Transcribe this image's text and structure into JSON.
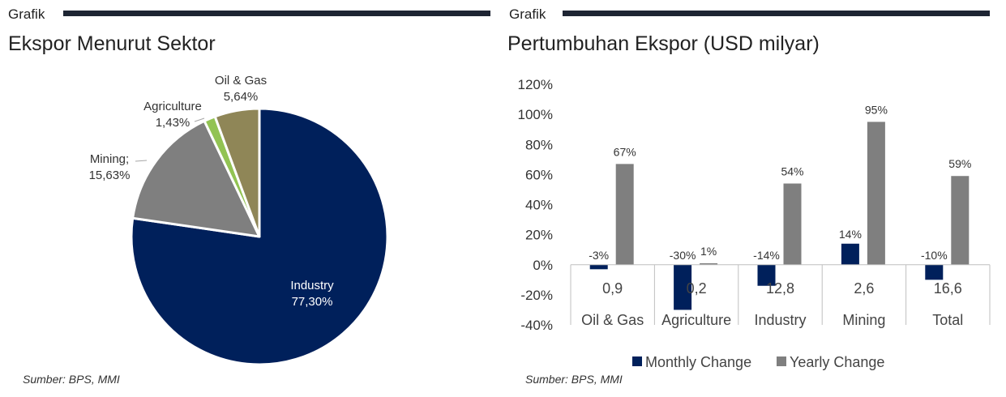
{
  "left_panel": {
    "kicker": "Grafik",
    "title": "Ekspor Menurut Sektor",
    "source": "Sumber: BPS, MMI"
  },
  "right_panel": {
    "kicker": "Grafik",
    "title": "Pertumbuhan Ekspor (USD milyar)",
    "source": "Sumber: BPS, MMI"
  },
  "colors": {
    "navy": "#00205b",
    "grey": "#7f7f7f",
    "light_green": "#92c353",
    "olive": "#8f8657",
    "axis_line": "#bfbfbf"
  },
  "chart_data": [
    {
      "type": "pie",
      "title": "Ekspor Menurut Sektor",
      "slices": [
        {
          "name": "Industry",
          "value": 77.3,
          "label": "77,30%",
          "color": "#00205b"
        },
        {
          "name": "Mining;",
          "value": 15.63,
          "label": "15,63%",
          "color": "#7f7f7f"
        },
        {
          "name": "Agriculture",
          "value": 1.43,
          "label": "1,43%",
          "color": "#92c353"
        },
        {
          "name": "Oil & Gas",
          "value": 5.64,
          "label": "5,64%",
          "color": "#8f8657"
        }
      ]
    },
    {
      "type": "bar",
      "title": "Pertumbuhan Ekspor (USD milyar)",
      "categories": [
        "Oil & Gas",
        "Agriculture",
        "Industry",
        "Mining",
        "Total"
      ],
      "category_values": [
        "0,9",
        "0,2",
        "12,8",
        "2,6",
        "16,6"
      ],
      "series": [
        {
          "name": "Monthly Change",
          "color": "#00205b",
          "values": [
            -3,
            -30,
            -14,
            14,
            -10
          ],
          "labels": [
            "-3%",
            "-30%",
            "-14%",
            "14%",
            "-10%"
          ]
        },
        {
          "name": "Yearly Change",
          "color": "#7f7f7f",
          "values": [
            67,
            1,
            54,
            95,
            59
          ],
          "labels": [
            "67%",
            "1%",
            "54%",
            "95%",
            "59%"
          ]
        }
      ],
      "ylim": [
        -40,
        120
      ],
      "yticks": [
        -40,
        -20,
        0,
        20,
        40,
        60,
        80,
        100,
        120
      ],
      "ytick_labels": [
        "-40%",
        "-20%",
        "0%",
        "20%",
        "40%",
        "60%",
        "80%",
        "100%",
        "120%"
      ],
      "grid": false,
      "legend": "bottom"
    }
  ]
}
